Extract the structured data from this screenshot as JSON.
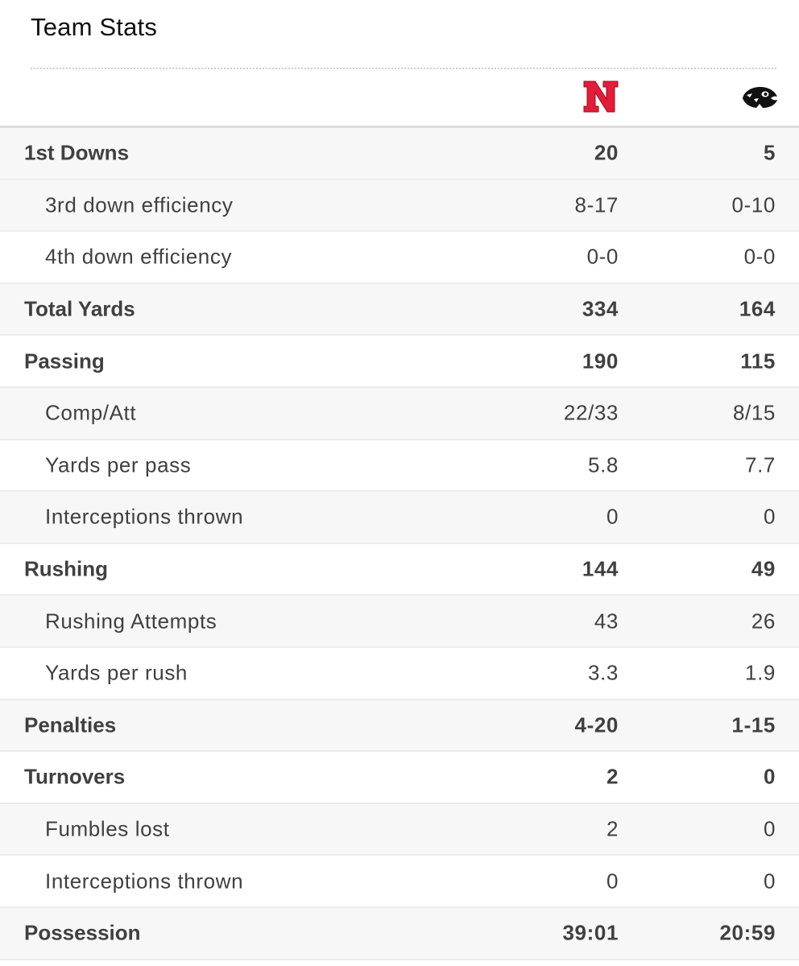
{
  "header": {
    "title": "Team Stats"
  },
  "teams": [
    {
      "logo": "nebraska-n-logo",
      "color": "#e41c38"
    },
    {
      "logo": "iowa-hawkeye-logo",
      "color": "#111111"
    }
  ],
  "stats": [
    {
      "label": "1st Downs",
      "home": "20",
      "away": "5",
      "level": "main",
      "shaded": true
    },
    {
      "label": "3rd down efficiency",
      "home": "8-17",
      "away": "0-10",
      "level": "sub",
      "shaded": true
    },
    {
      "label": "4th down efficiency",
      "home": "0-0",
      "away": "0-0",
      "level": "sub",
      "shaded": false
    },
    {
      "label": "Total Yards",
      "home": "334",
      "away": "164",
      "level": "main",
      "shaded": true
    },
    {
      "label": "Passing",
      "home": "190",
      "away": "115",
      "level": "main",
      "shaded": false
    },
    {
      "label": "Comp/Att",
      "home": "22/33",
      "away": "8/15",
      "level": "sub",
      "shaded": true
    },
    {
      "label": "Yards per pass",
      "home": "5.8",
      "away": "7.7",
      "level": "sub",
      "shaded": false
    },
    {
      "label": "Interceptions thrown",
      "home": "0",
      "away": "0",
      "level": "sub",
      "shaded": true
    },
    {
      "label": "Rushing",
      "home": "144",
      "away": "49",
      "level": "main",
      "shaded": false
    },
    {
      "label": "Rushing Attempts",
      "home": "43",
      "away": "26",
      "level": "sub",
      "shaded": true
    },
    {
      "label": "Yards per rush",
      "home": "3.3",
      "away": "1.9",
      "level": "sub",
      "shaded": false
    },
    {
      "label": "Penalties",
      "home": "4-20",
      "away": "1-15",
      "level": "main",
      "shaded": true
    },
    {
      "label": "Turnovers",
      "home": "2",
      "away": "0",
      "level": "main",
      "shaded": false
    },
    {
      "label": "Fumbles lost",
      "home": "2",
      "away": "0",
      "level": "sub",
      "shaded": true
    },
    {
      "label": "Interceptions thrown",
      "home": "0",
      "away": "0",
      "level": "sub",
      "shaded": false
    },
    {
      "label": "Possession",
      "home": "39:01",
      "away": "20:59",
      "level": "main",
      "shaded": true
    }
  ]
}
